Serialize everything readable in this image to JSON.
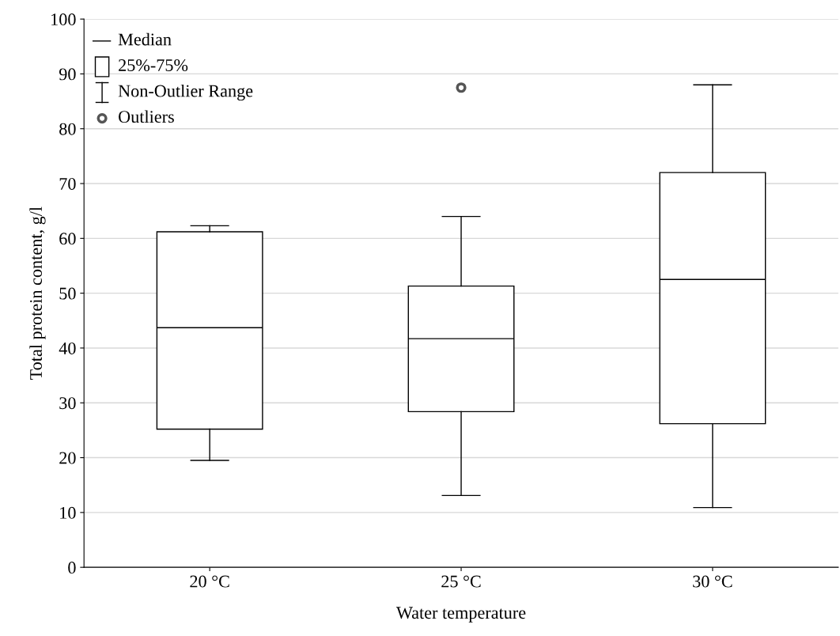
{
  "chart_data": {
    "type": "box",
    "xlabel": "Water temperature",
    "ylabel": "Total protein content, g/l",
    "categories": [
      "20 °C",
      "25 °C",
      "30 °C"
    ],
    "boxes": [
      {
        "low": 19.5,
        "q1": 25.2,
        "median": 43.7,
        "q3": 61.2,
        "high": 62.3
      },
      {
        "low": 13.1,
        "q1": 28.4,
        "median": 41.7,
        "q3": 51.3,
        "high": 64,
        "outliers": [
          87.5
        ]
      },
      {
        "low": 10.9,
        "q1": 26.2,
        "median": 52.5,
        "q3": 72,
        "high": 88
      }
    ],
    "color": "#000000",
    "ylim": [
      0,
      100
    ],
    "yticks": [
      0,
      10,
      20,
      30,
      40,
      50,
      60,
      70,
      80,
      90,
      100
    ],
    "grid": "y",
    "annotations": [
      "Median",
      "25%-75%",
      "Non-Outlier Range",
      "Outliers"
    ]
  }
}
